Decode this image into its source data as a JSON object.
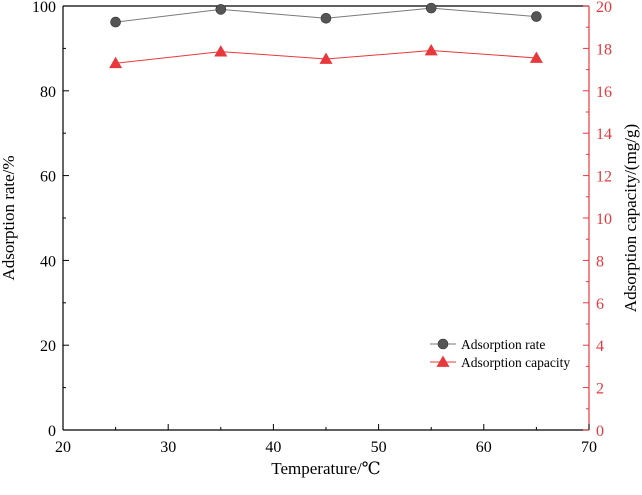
{
  "chart_data": {
    "type": "line",
    "x": [
      25,
      35,
      45,
      55,
      65
    ],
    "xlabel": "Temperature/℃",
    "ylabel_left": "Adsorption rate/%",
    "ylabel_right": "Adsorption capacity/(mg/g)",
    "xlim": [
      20,
      70
    ],
    "ylim_left": [
      0,
      100
    ],
    "ylim_right": [
      0,
      20
    ],
    "x_ticks": [
      20,
      30,
      40,
      50,
      60,
      70
    ],
    "y_ticks_left": [
      0,
      20,
      40,
      60,
      80,
      100
    ],
    "y_ticks_right": [
      0,
      2,
      4,
      6,
      8,
      10,
      12,
      14,
      16,
      18,
      20
    ],
    "grid": false,
    "legend_position": "lower-right",
    "series": [
      {
        "name": "Adsorption rate",
        "axis": "left",
        "color": "#555555",
        "line_color": "#7a7a7a",
        "marker": "circle",
        "values": [
          96.2,
          99.2,
          97.1,
          99.5,
          97.5
        ]
      },
      {
        "name": "Adsorption capacity",
        "axis": "right",
        "color": "#e8383d",
        "line_color": "#e8383d",
        "marker": "triangle",
        "values": [
          17.3,
          17.85,
          17.5,
          17.9,
          17.55
        ]
      }
    ],
    "colors": {
      "left_axis": "#000000",
      "right_axis": "#e8383d"
    }
  }
}
